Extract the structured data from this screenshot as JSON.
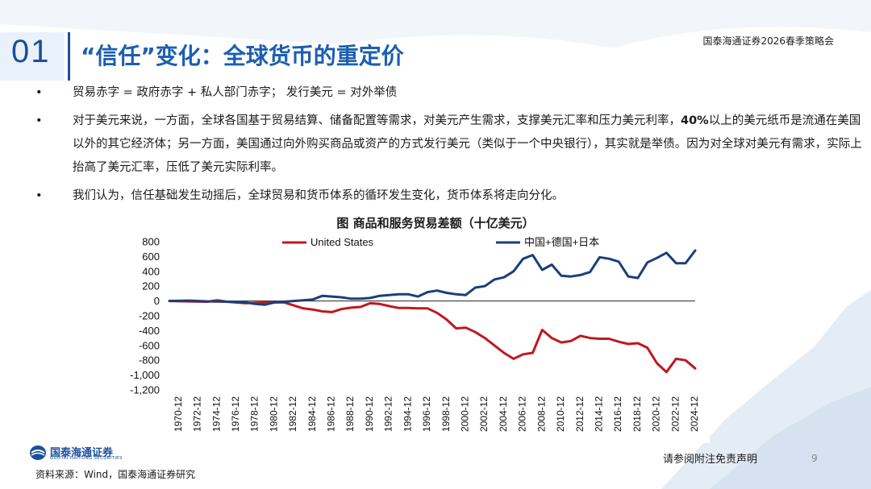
{
  "header": {
    "slide_number": "01",
    "title": "“信任”变化：全球货币的重定价",
    "conference": "国泰海通证券2026春季策略会"
  },
  "bullets": [
    {
      "marker": "•",
      "text": "贸易赤字 = 政府赤字 + 私人部门赤字；  发行美元 = 对外举债"
    },
    {
      "marker": "•",
      "text_before": "对于美元来说，一方面，全球各国基于贸易结算、储备配置等需求，对美元产生需求，支撑美元汇率和压力美元利率，",
      "bold": "40%",
      "text_after": "以上的美元纸币是流通在美国以外的其它经济体；另一方面，美国通过向外购买商品或资产的方式发行美元（类似于一个中央银行），其实就是举债。因为对全球对美元有需求，实际上抬高了美元汇率，压低了美元实际利率。"
    },
    {
      "marker": "•",
      "text": "我们认为，信任基础发生动摇后，全球贸易和货币体系的循环发生变化，货币体系将走向分化。"
    }
  ],
  "footer": {
    "logo_cn": "国泰海通证券",
    "logo_en": "GUOTAI HAITONG SECURITIES",
    "source": "资料来源：Wind，国泰海通证券研究",
    "disclaimer": "请参阅附注免责声明",
    "page": "9"
  },
  "chart_data": {
    "type": "line",
    "title": "图 商品和服务贸易差额（十亿美元）",
    "x_ticks": [
      "1970-12",
      "1972-12",
      "1974-12",
      "1976-12",
      "1978-12",
      "1980-12",
      "1982-12",
      "1984-12",
      "1986-12",
      "1988-12",
      "1990-12",
      "1992-12",
      "1994-12",
      "1996-12",
      "1998-12",
      "2000-12",
      "2002-12",
      "2004-12",
      "2006-12",
      "2008-12",
      "2010-12",
      "2012-12",
      "2014-12",
      "2016-12",
      "2018-12",
      "2020-12",
      "2022-12",
      "2024-12"
    ],
    "y_ticks": [
      "800",
      "600",
      "400",
      "200",
      "0",
      "-200",
      "-400",
      "-600",
      "-800",
      "-1,000",
      "-1,200"
    ],
    "ylim": [
      -1200,
      800
    ],
    "xlim": [
      1970,
      2025
    ],
    "series": [
      {
        "name": "United States",
        "color": "#c0181f",
        "x": [
          1970,
          1972,
          1974,
          1975,
          1976,
          1978,
          1980,
          1982,
          1984,
          1985,
          1986,
          1987,
          1988,
          1989,
          1990,
          1991,
          1992,
          1993,
          1994,
          1995,
          1996,
          1997,
          1998,
          1999,
          2000,
          2001,
          2002,
          2003,
          2004,
          2005,
          2006,
          2007,
          2008,
          2009,
          2010,
          2011,
          2012,
          2013,
          2014,
          2015,
          2016,
          2017,
          2018,
          2019,
          2020,
          2021,
          2022,
          2023,
          2024,
          2025
        ],
        "y": [
          0,
          -5,
          -10,
          10,
          -10,
          -30,
          -20,
          -20,
          -100,
          -115,
          -140,
          -150,
          -110,
          -90,
          -80,
          -30,
          -40,
          -70,
          -95,
          -95,
          -100,
          -100,
          -160,
          -250,
          -370,
          -360,
          -420,
          -500,
          -600,
          -700,
          -780,
          -720,
          -700,
          -390,
          -500,
          -560,
          -540,
          -470,
          -500,
          -510,
          -510,
          -550,
          -580,
          -570,
          -630,
          -840,
          -960,
          -780,
          -800,
          -910
        ]
      },
      {
        "name": "中国+德国+日本",
        "color": "#1b3f7a",
        "x": [
          1970,
          1972,
          1974,
          1976,
          1978,
          1979,
          1980,
          1981,
          1982,
          1984,
          1985,
          1986,
          1988,
          1989,
          1990,
          1991,
          1992,
          1993,
          1994,
          1995,
          1996,
          1997,
          1998,
          1999,
          2000,
          2001,
          2002,
          2003,
          2004,
          2005,
          2006,
          2007,
          2008,
          2009,
          2010,
          2011,
          2012,
          2013,
          2014,
          2015,
          2016,
          2017,
          2018,
          2019,
          2020,
          2021,
          2022,
          2023,
          2024,
          2025
        ],
        "y": [
          0,
          5,
          -5,
          -10,
          -20,
          -40,
          -50,
          -20,
          -10,
          10,
          20,
          70,
          50,
          30,
          30,
          40,
          70,
          80,
          90,
          90,
          60,
          120,
          140,
          110,
          90,
          80,
          180,
          200,
          290,
          320,
          400,
          570,
          620,
          420,
          490,
          340,
          330,
          350,
          390,
          590,
          570,
          530,
          330,
          310,
          520,
          580,
          650,
          510,
          510,
          680
        ]
      }
    ]
  }
}
